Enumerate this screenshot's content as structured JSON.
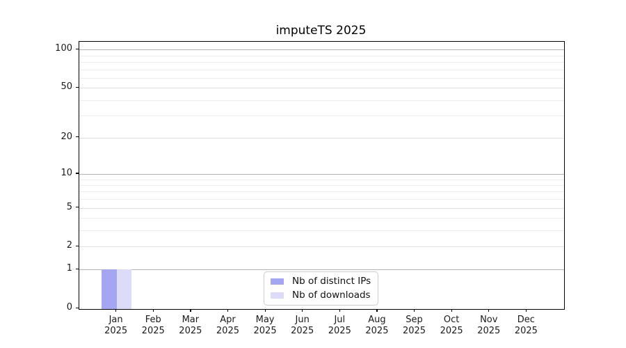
{
  "chart_data": {
    "type": "bar",
    "title": "imputeTS 2025",
    "x_months": [
      "Jan",
      "Feb",
      "Mar",
      "Apr",
      "May",
      "Jun",
      "Jul",
      "Aug",
      "Sep",
      "Oct",
      "Nov",
      "Dec"
    ],
    "x_year": "2025",
    "series": [
      {
        "name": "Nb of distinct IPs",
        "color": "#a5a6f2",
        "values": [
          1,
          0,
          0,
          0,
          0,
          0,
          0,
          0,
          0,
          0,
          0,
          0
        ]
      },
      {
        "name": "Nb of downloads",
        "color": "#dcdcf9",
        "values": [
          1,
          0,
          0,
          0,
          0,
          0,
          0,
          0,
          0,
          0,
          0,
          0
        ]
      }
    ],
    "yscale": "log1p",
    "ylim": [
      0,
      116
    ],
    "y_tick_values": [
      0,
      1,
      2,
      5,
      10,
      20,
      50,
      100
    ],
    "y_major_gridlines": [
      1,
      10,
      100
    ],
    "y_labeled_minor_gridlines": [
      2,
      5,
      20,
      50
    ],
    "y_minor_gridlines": [
      3,
      4,
      6,
      7,
      8,
      9,
      30,
      40,
      60,
      70,
      80,
      90
    ],
    "grid": "horizontal",
    "legend_position": "bottom-center"
  },
  "colors": {
    "background": "#ffffff",
    "axis": "#000000",
    "tick_label": "#1a1a1a",
    "grid_major": "#b2b2b2",
    "grid_labeled_minor": "#dfdfdf",
    "grid_minor": "#ececec",
    "legend_border": "#cccccc"
  }
}
